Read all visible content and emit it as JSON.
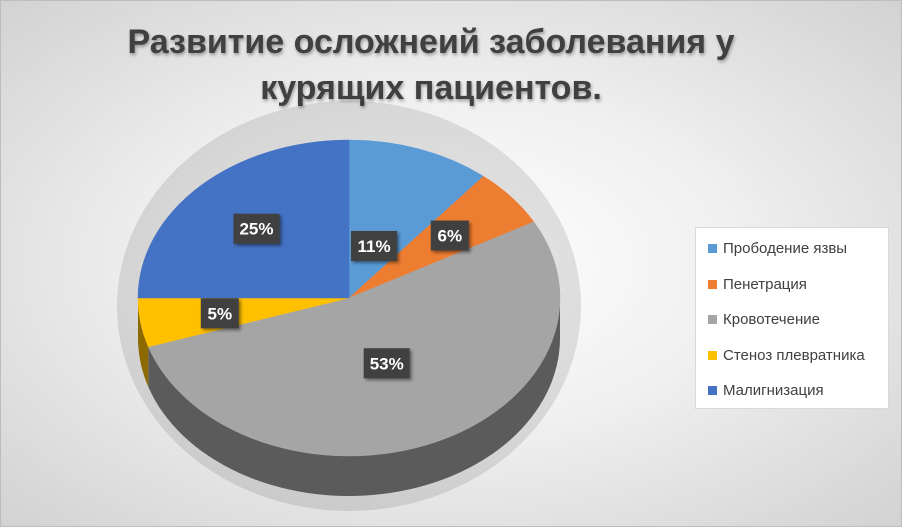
{
  "chart_data": {
    "type": "pie",
    "title_lines": [
      "Развитие осложнеий заболевания у",
      "курящих пациентов."
    ],
    "slices": [
      {
        "label": "Прободение язвы",
        "value": 11,
        "display": "11%",
        "color": "#5b9bd5"
      },
      {
        "label": "Пенетрация",
        "value": 6,
        "display": "6%",
        "color": "#ed7d31"
      },
      {
        "label": "Кровотечение",
        "value": 53,
        "display": "53%",
        "color": "#a5a5a5"
      },
      {
        "label": "Стеноз плевратника",
        "value": 5,
        "display": "5%",
        "color": "#ffc000"
      },
      {
        "label": "Малигнизация",
        "value": 25,
        "display": "25%",
        "color": "#4472c4"
      }
    ],
    "legend_position": "right",
    "style": "3d-pie"
  }
}
